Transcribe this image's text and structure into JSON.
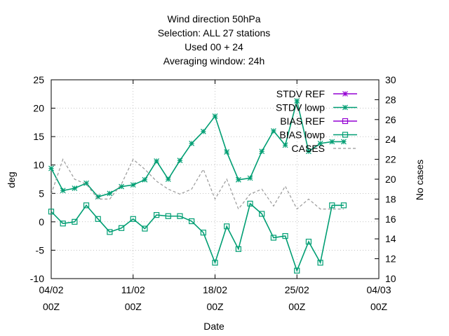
{
  "chart_data": {
    "type": "line",
    "title_lines": [
      "Wind direction 50hPa",
      "Selection: ALL      27 stations",
      "Used  00  + 24",
      "Averaging window: 24h"
    ],
    "xlabel": "Date",
    "ylabel": "deg",
    "y2label": "No cases",
    "xlim": [
      0,
      28
    ],
    "ylim": [
      -10,
      25
    ],
    "y2lim": [
      10,
      30
    ],
    "x_ticks": [
      {
        "x": 0,
        "line1": "04/02",
        "line2": "00Z"
      },
      {
        "x": 7,
        "line1": "11/02",
        "line2": "00Z"
      },
      {
        "x": 14,
        "line1": "18/02",
        "line2": "00Z"
      },
      {
        "x": 21,
        "line1": "25/02",
        "line2": "00Z"
      },
      {
        "x": 28,
        "line1": "04/03",
        "line2": "00Z"
      }
    ],
    "y_ticks": [
      -10,
      -5,
      0,
      5,
      10,
      15,
      20,
      25
    ],
    "y2_ticks": [
      10,
      12,
      14,
      16,
      18,
      20,
      22,
      24,
      26,
      28,
      30
    ],
    "grid": true,
    "legend_position": "top-right",
    "series": [
      {
        "name": "STDV REF",
        "axis": "y",
        "color": "#9400d3",
        "marker": "star",
        "dash": "",
        "x": [],
        "values": []
      },
      {
        "name": "STDV lowp",
        "axis": "y",
        "color": "#009e73",
        "marker": "star",
        "dash": "",
        "x": [
          0,
          1,
          2,
          3,
          4,
          5,
          6,
          7,
          8,
          9,
          10,
          11,
          12,
          13,
          14,
          15,
          16,
          17,
          18,
          19,
          20,
          21,
          22,
          23,
          24,
          25
        ],
        "values": [
          9.4,
          5.5,
          5.9,
          6.8,
          4.4,
          5.0,
          6.2,
          6.5,
          7.4,
          10.7,
          7.5,
          10.8,
          13.8,
          15.9,
          18.6,
          12.3,
          7.4,
          7.7,
          12.4,
          16.0,
          13.5,
          21.3,
          12.4,
          13.8,
          14.1,
          14.1
        ]
      },
      {
        "name": "BIAS REF",
        "axis": "y",
        "color": "#9400d3",
        "marker": "square",
        "dash": "",
        "x": [],
        "values": []
      },
      {
        "name": "BIAS lowp",
        "axis": "y",
        "color": "#009e73",
        "marker": "square",
        "dash": "",
        "x": [
          0,
          1,
          2,
          3,
          4,
          5,
          6,
          7,
          8,
          9,
          10,
          11,
          12,
          13,
          14,
          15,
          16,
          17,
          18,
          19,
          20,
          21,
          22,
          23,
          24,
          25
        ],
        "values": [
          1.8,
          -0.3,
          0.0,
          2.9,
          0.5,
          -1.8,
          -1.1,
          0.5,
          -1.2,
          1.2,
          1.0,
          1.0,
          0.1,
          -1.9,
          -7.2,
          -0.8,
          -4.8,
          3.2,
          1.4,
          -2.8,
          -2.5,
          -8.6,
          -3.5,
          -7.2,
          2.9,
          2.9
        ]
      },
      {
        "name": "CASES",
        "axis": "y2",
        "color": "#999999",
        "marker": "",
        "dash": "4,3",
        "x": [
          0,
          1,
          2,
          3,
          4,
          5,
          6,
          7,
          8,
          9,
          10,
          11,
          12,
          13,
          14,
          15,
          16,
          17,
          18,
          19,
          20,
          21,
          22,
          23,
          24,
          25
        ],
        "values": [
          18.5,
          22.0,
          20.0,
          19.5,
          18.0,
          18.0,
          19.5,
          22.0,
          21.0,
          19.8,
          19.0,
          18.5,
          19.0,
          21.0,
          18.0,
          20.0,
          17.0,
          18.5,
          19.0,
          17.3,
          19.3,
          17.0,
          18.0,
          17.0,
          17.0,
          17.0
        ]
      }
    ]
  }
}
